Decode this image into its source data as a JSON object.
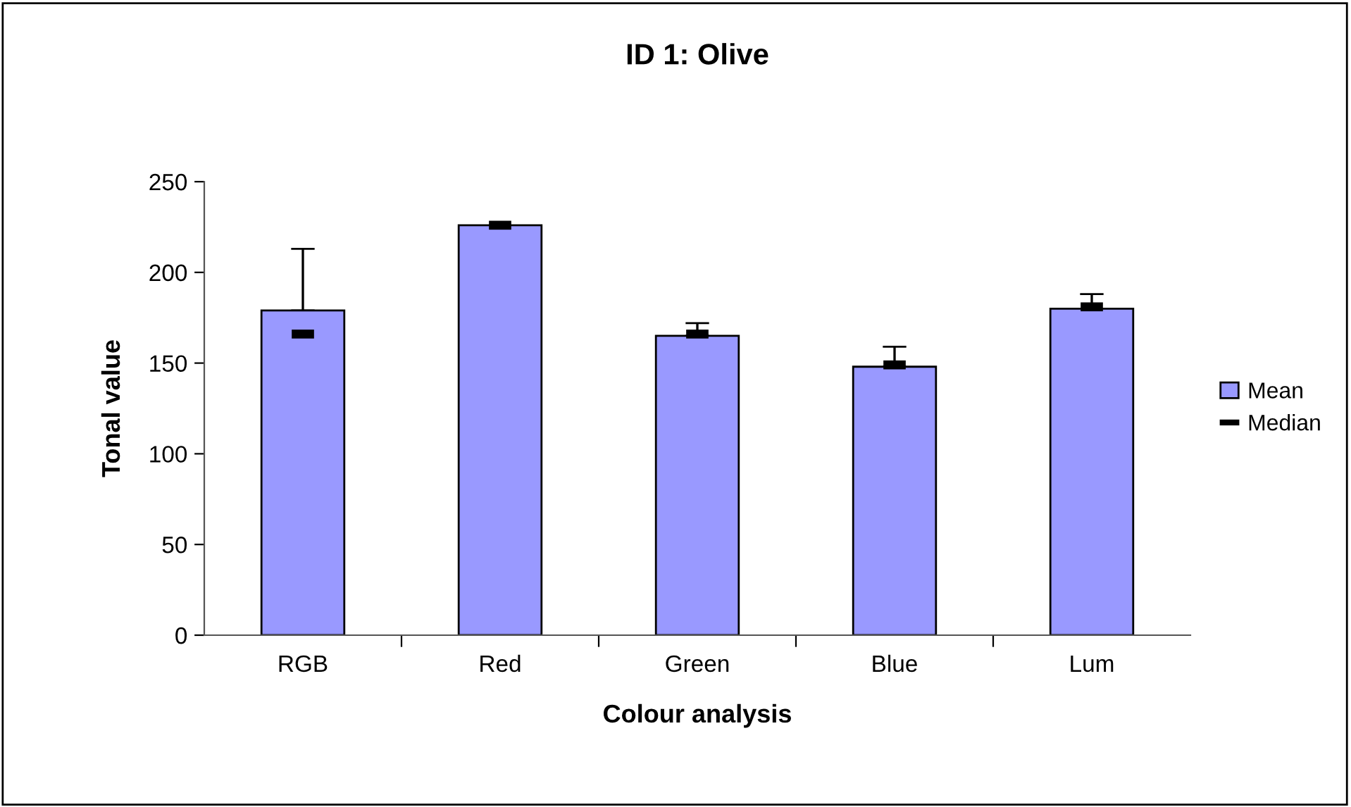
{
  "chart_data": {
    "type": "bar",
    "title": "ID 1: Olive",
    "xlabel": "Colour analysis",
    "ylabel": "Tonal value",
    "categories": [
      "RGB",
      "Red",
      "Green",
      "Blue",
      "Lum"
    ],
    "series": [
      {
        "name": "Mean",
        "type": "bar",
        "color": "#9999ff",
        "values": [
          179,
          226,
          165,
          148,
          180
        ],
        "errors": [
          [
            179,
            213
          ],
          null,
          [
            165,
            172
          ],
          [
            148,
            159
          ],
          [
            180,
            188
          ]
        ]
      },
      {
        "name": "Median",
        "type": "scatter",
        "color": "#000000",
        "x": [
          "RGB",
          "Red",
          "Green",
          "Blue",
          "Lum"
        ],
        "values": [
          166,
          226,
          166,
          149,
          181
        ],
        "marker": "square"
      }
    ],
    "ylim": [
      0,
      250
    ],
    "yticks": [
      0,
      50,
      100,
      150,
      200,
      250
    ],
    "grid": false,
    "legend": "right"
  }
}
